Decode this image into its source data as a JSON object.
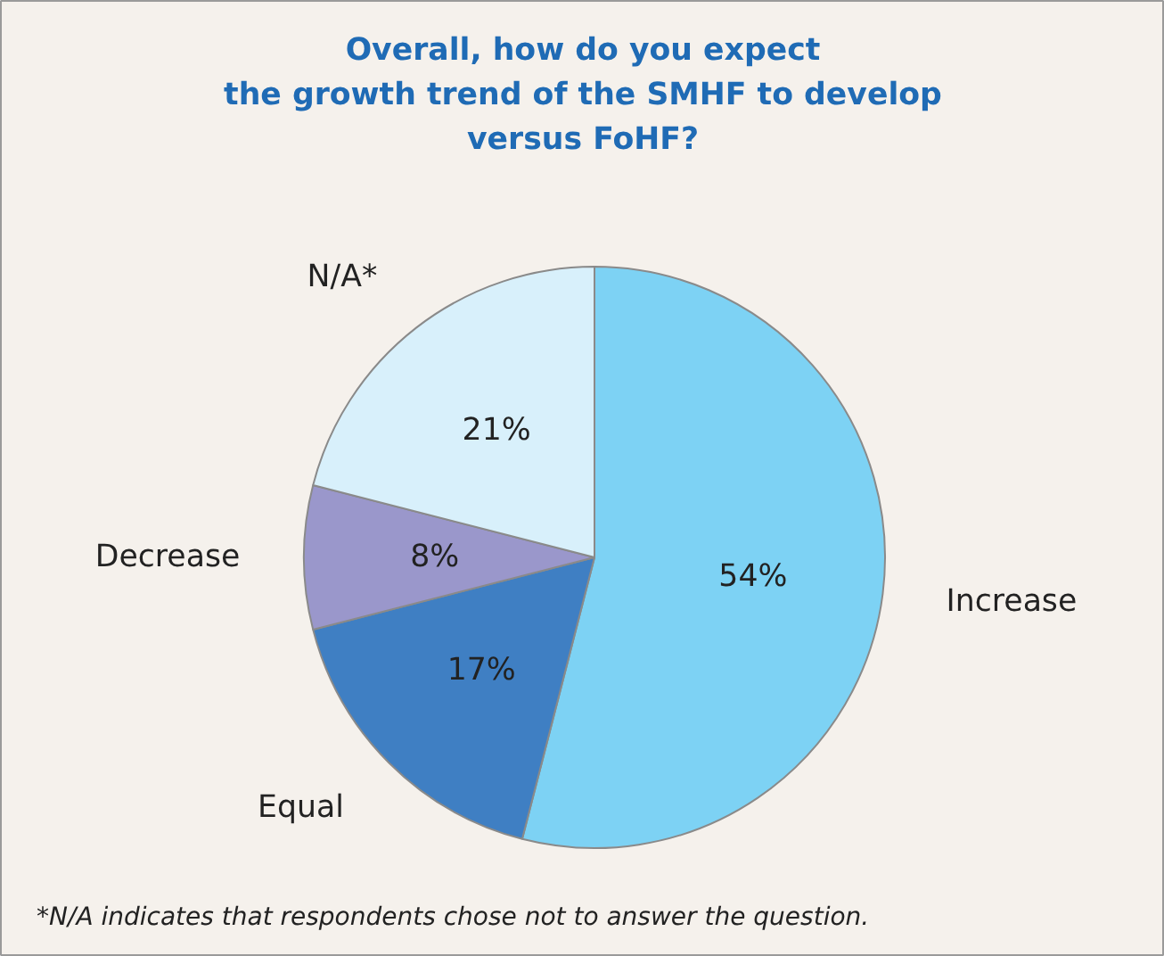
{
  "chart_data": {
    "type": "pie",
    "title": "Overall, how do you expect\nthe growth trend of the SMHF to develop\nversus FoHF?",
    "categories": [
      "Increase",
      "Equal",
      "Decrease",
      "N/A*"
    ],
    "values": [
      54,
      17,
      8,
      21
    ],
    "value_labels": [
      "54%",
      "17%",
      "8%",
      "21%"
    ],
    "colors": [
      "#7dd2f4",
      "#3f7fc3",
      "#9a97cb",
      "#d8f0fb"
    ],
    "annotations": [
      "*N/A indicates that respondents chose not to answer the question."
    ]
  }
}
